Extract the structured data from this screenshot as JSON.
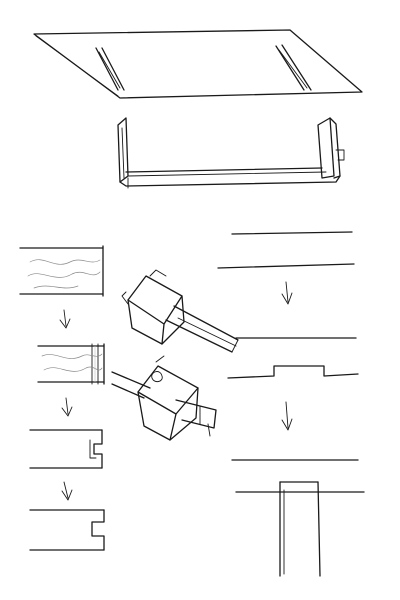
{
  "drawing": {
    "ink_color": "#1a1a1a",
    "paper_color": "#ffffff",
    "pencil_shade": "#8a8a8a"
  },
  "panels": {
    "panel_1": {
      "icon": "flat-board-with-two-grooves"
    },
    "panel_2": {
      "icon": "assembled-u-shelf"
    },
    "panel_3": {
      "icon": "board-end-cut-steps"
    },
    "panel_4": {
      "icon": "router-cutting-groove"
    },
    "panel_5": {
      "icon": "groove-and-tenon-profile-steps"
    }
  },
  "arrows": [
    {
      "icon": "down-arrow-icon"
    },
    {
      "icon": "down-arrow-icon"
    },
    {
      "icon": "down-arrow-icon"
    },
    {
      "icon": "down-arrow-icon"
    },
    {
      "icon": "down-arrow-icon"
    }
  ]
}
